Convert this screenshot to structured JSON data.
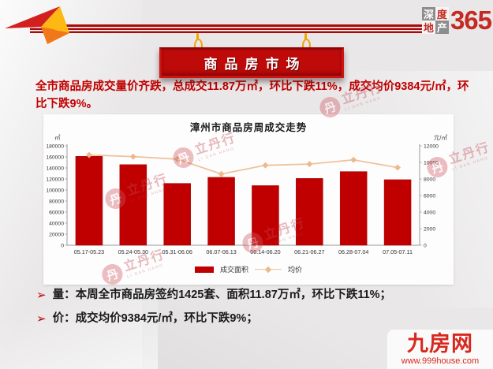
{
  "header": {
    "logo": {
      "blocks": [
        "深",
        "度",
        "地",
        "产"
      ],
      "number": "365"
    },
    "sign": "商品房市场"
  },
  "summary": "全市商品房成交量价齐跌，总成交11.87万㎡，环比下跌11%，成交均价9384元/㎡，环比下跌9%。",
  "chart_data": {
    "type": "bar",
    "title": "漳州市商品房周成交走势",
    "categories": [
      "05.17-05.23",
      "05.24-05.30",
      "05.31-06.06",
      "06.07-06.13",
      "06.14-06.20",
      "06.21-06.27",
      "06.28-07.04",
      "07.05-07.11"
    ],
    "series": [
      {
        "name": "成交面积",
        "type": "bar",
        "axis": "left",
        "color": "#c00000",
        "values": [
          161000,
          146000,
          112000,
          123000,
          108000,
          121000,
          133400,
          118700
        ]
      },
      {
        "name": "均价",
        "type": "line",
        "axis": "right",
        "color": "#f0c29b",
        "marker_color": "#edb98c",
        "values": [
          10900,
          10700,
          10400,
          8600,
          9650,
          9800,
          10312,
          9384
        ]
      }
    ],
    "left_axis": {
      "unit": "㎡",
      "min": 0,
      "max": 180000,
      "step": 20000
    },
    "right_axis": {
      "unit": "元/㎡",
      "min": 0,
      "max": 12000,
      "step": 2000
    },
    "legend_position": "bottom",
    "grid": false
  },
  "bullets": [
    "量：本周全市商品房签约1425套、面积11.87万㎡，环比下跌11%；",
    "价：成交均价9384元/㎡，环比下跌9%；"
  ],
  "icons": {
    "bullet": "➢"
  },
  "watermark": {
    "glyph": "丹",
    "text": "立丹行",
    "subtext": "LI DAN HANG"
  },
  "footer": {
    "brand": "九房网",
    "url": "www.999house.com"
  },
  "colors": {
    "accent_red": "#c00000",
    "bar_red": "#c00000",
    "line_peach": "#f0c29b",
    "gold": "#f2a407"
  }
}
